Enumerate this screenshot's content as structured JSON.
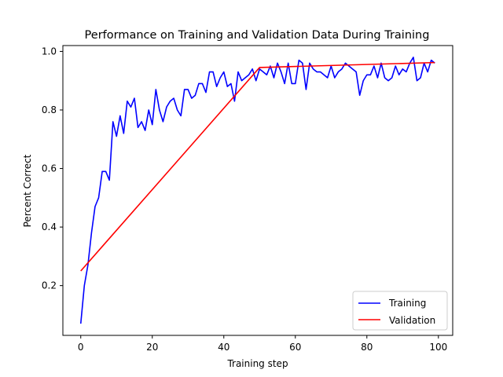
{
  "chart_data": {
    "type": "line",
    "title": "Performance on Training and Validation Data During Training",
    "xlabel": "Training step",
    "ylabel": "Percent Correct",
    "xlim": [
      -5,
      104
    ],
    "ylim": [
      0.03,
      1.02
    ],
    "xticks": [
      0,
      20,
      40,
      60,
      80,
      100
    ],
    "yticks": [
      0.2,
      0.4,
      0.6,
      0.8,
      1.0
    ],
    "ytick_labels": [
      "0.2",
      "0.4",
      "0.6",
      "0.8",
      "1.0"
    ],
    "xtick_labels": [
      "0",
      "20",
      "40",
      "60",
      "80",
      "100"
    ],
    "grid": false,
    "legend_position": "lower-right",
    "series": [
      {
        "name": "Training",
        "color": "#0000ff",
        "x": [
          0,
          1,
          2,
          3,
          4,
          5,
          6,
          7,
          8,
          9,
          10,
          11,
          12,
          13,
          14,
          15,
          16,
          17,
          18,
          19,
          20,
          21,
          22,
          23,
          24,
          25,
          26,
          27,
          28,
          29,
          30,
          31,
          32,
          33,
          34,
          35,
          36,
          37,
          38,
          39,
          40,
          41,
          42,
          43,
          44,
          45,
          46,
          47,
          48,
          49,
          50,
          51,
          52,
          53,
          54,
          55,
          56,
          57,
          58,
          59,
          60,
          61,
          62,
          63,
          64,
          65,
          66,
          67,
          68,
          69,
          70,
          71,
          72,
          73,
          74,
          75,
          76,
          77,
          78,
          79,
          80,
          81,
          82,
          83,
          84,
          85,
          86,
          87,
          88,
          89,
          90,
          91,
          92,
          93,
          94,
          95,
          96,
          97,
          98,
          99
        ],
        "values": [
          0.07,
          0.2,
          0.27,
          0.38,
          0.47,
          0.5,
          0.59,
          0.59,
          0.56,
          0.76,
          0.71,
          0.78,
          0.72,
          0.83,
          0.81,
          0.84,
          0.74,
          0.76,
          0.73,
          0.8,
          0.75,
          0.87,
          0.8,
          0.76,
          0.81,
          0.83,
          0.84,
          0.8,
          0.78,
          0.87,
          0.87,
          0.84,
          0.85,
          0.89,
          0.89,
          0.86,
          0.93,
          0.93,
          0.88,
          0.91,
          0.93,
          0.88,
          0.89,
          0.83,
          0.93,
          0.9,
          0.91,
          0.92,
          0.94,
          0.9,
          0.94,
          0.93,
          0.92,
          0.95,
          0.91,
          0.96,
          0.93,
          0.89,
          0.96,
          0.89,
          0.89,
          0.97,
          0.96,
          0.87,
          0.96,
          0.94,
          0.93,
          0.93,
          0.92,
          0.91,
          0.95,
          0.91,
          0.93,
          0.94,
          0.96,
          0.95,
          0.94,
          0.93,
          0.85,
          0.9,
          0.92,
          0.92,
          0.95,
          0.91,
          0.96,
          0.91,
          0.9,
          0.91,
          0.95,
          0.92,
          0.94,
          0.93,
          0.96,
          0.98,
          0.9,
          0.91,
          0.96,
          0.93,
          0.97,
          0.96
        ]
      },
      {
        "name": "Validation",
        "color": "#ff0000",
        "x": [
          0,
          50,
          99
        ],
        "values": [
          0.25,
          0.945,
          0.962
        ]
      }
    ]
  }
}
